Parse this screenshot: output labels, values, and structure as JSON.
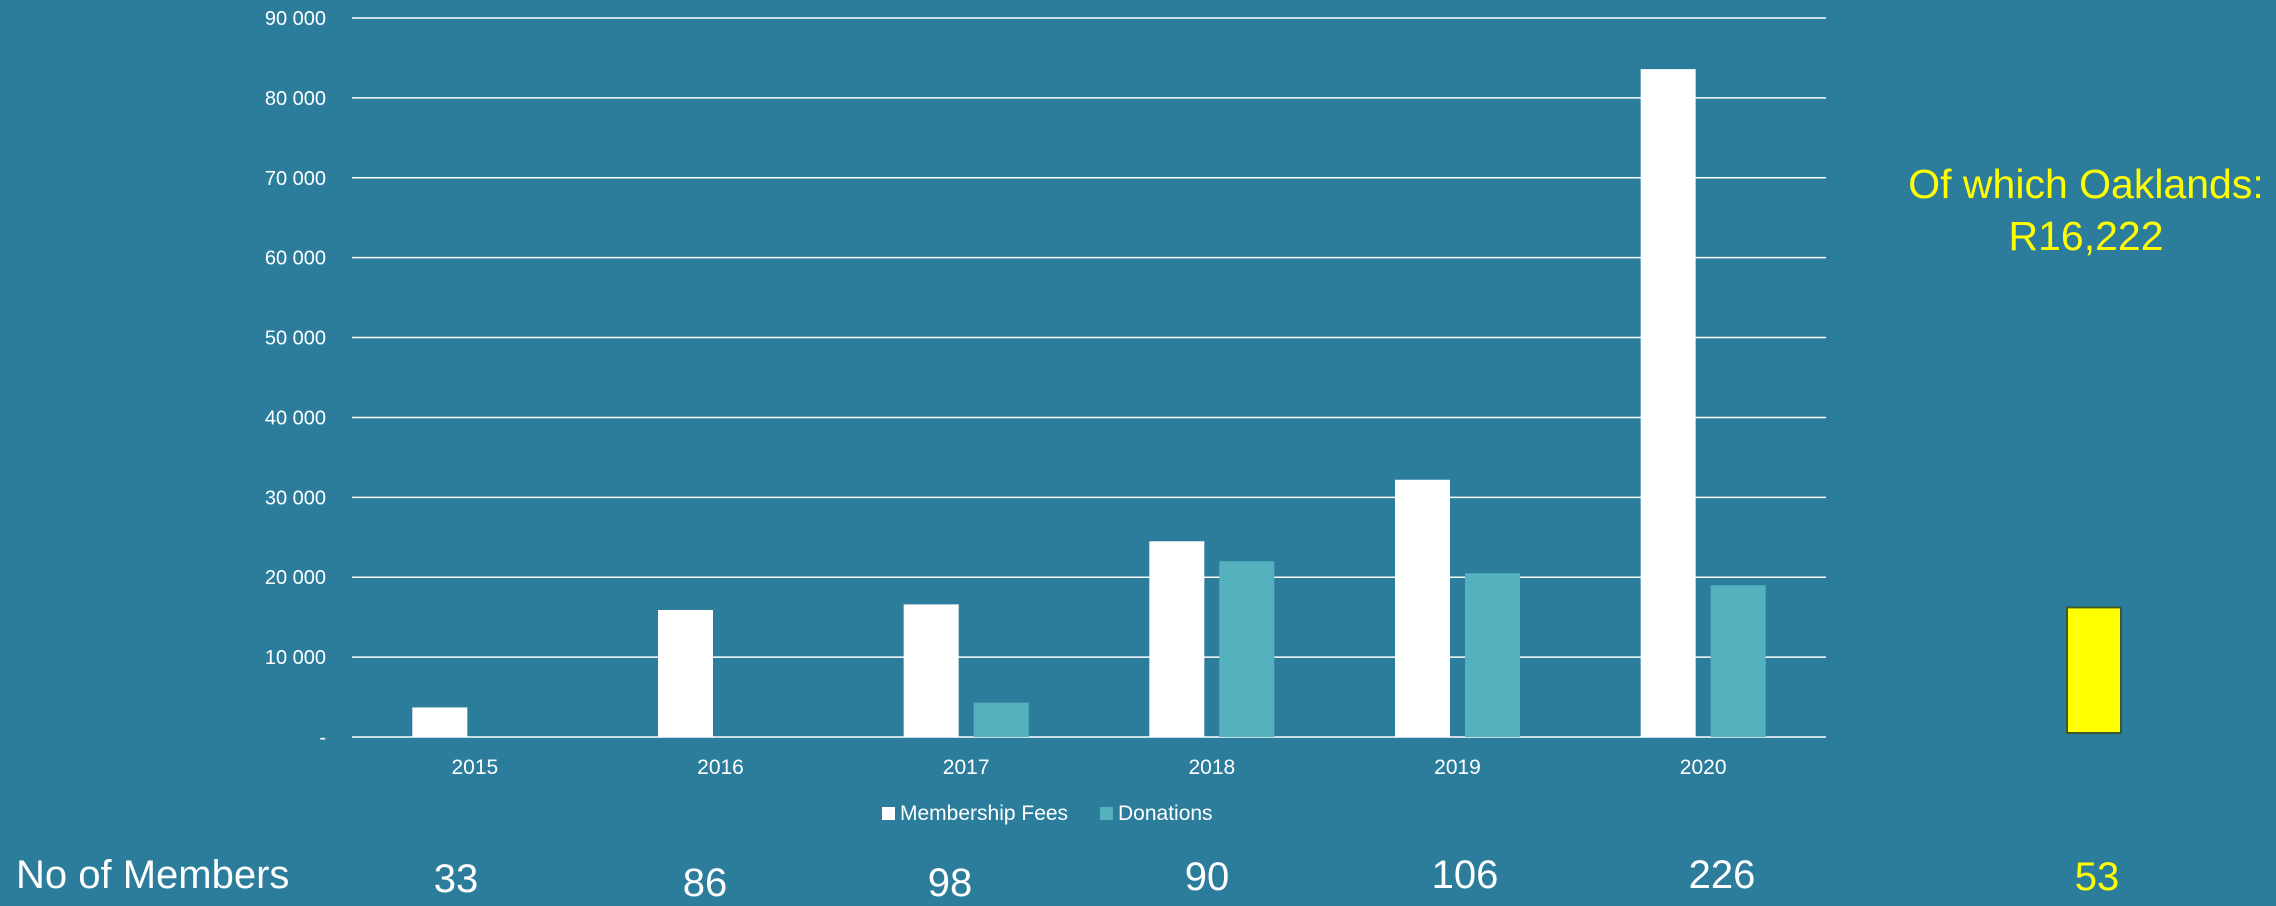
{
  "colors": {
    "background": "#2b7d9b",
    "membership_fees": "#ffffff",
    "donations": "#56b1bf",
    "oaklands": "#ffff00",
    "gridline": "#ffffff"
  },
  "chart_data": [
    {
      "type": "bar",
      "categories": [
        "2015",
        "2016",
        "2017",
        "2018",
        "2019",
        "2020"
      ],
      "series": [
        {
          "name": "Membership Fees",
          "values": [
            3700,
            15900,
            16600,
            24500,
            32200,
            83600
          ]
        },
        {
          "name": "Donations",
          "values": [
            0,
            0,
            4300,
            22000,
            20500,
            19000
          ]
        }
      ],
      "ylim": [
        0,
        90000
      ],
      "yticks": [
        0,
        10000,
        20000,
        30000,
        40000,
        50000,
        60000,
        70000,
        80000,
        90000
      ],
      "ytick_labels": [
        "-",
        "10 000",
        "20 000",
        "30 000",
        "40 000",
        "50 000",
        "60 000",
        "70 000",
        "80 000",
        "90 000"
      ],
      "grid": true,
      "legend": "bottom"
    },
    {
      "type": "bar",
      "categories": [
        ""
      ],
      "values": [
        16222
      ],
      "ylim": [
        0,
        90000
      ]
    }
  ],
  "annotation": {
    "line1": "Of which Oaklands:",
    "line2": "R16,222"
  },
  "members": {
    "label": "No of Members",
    "counts": [
      "33",
      "86",
      "98",
      "90",
      "106",
      "226"
    ],
    "oaklands_count": "53"
  }
}
